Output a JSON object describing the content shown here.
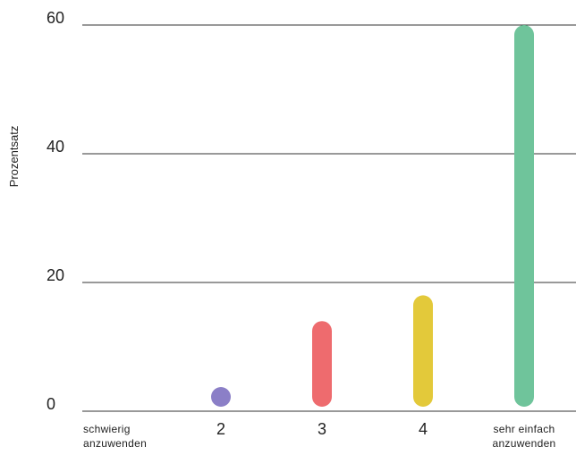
{
  "chart_data": {
    "type": "bar",
    "title": "",
    "xlabel": "",
    "ylabel": "Prozentsatz",
    "ylim": [
      0,
      60
    ],
    "yticks": [
      0,
      20,
      40,
      60
    ],
    "grid": true,
    "categories": [
      [
        "schwierig",
        "anzuwenden"
      ],
      [
        "2"
      ],
      [
        "3"
      ],
      [
        "4"
      ],
      [
        "sehr einfach",
        "anzuwenden"
      ]
    ],
    "values": [
      0,
      2,
      14,
      18,
      60
    ],
    "colors": [
      "#8b7fc7",
      "#8b7fc7",
      "#ee6b6e",
      "#e3c93a",
      "#6fc49b"
    ]
  }
}
